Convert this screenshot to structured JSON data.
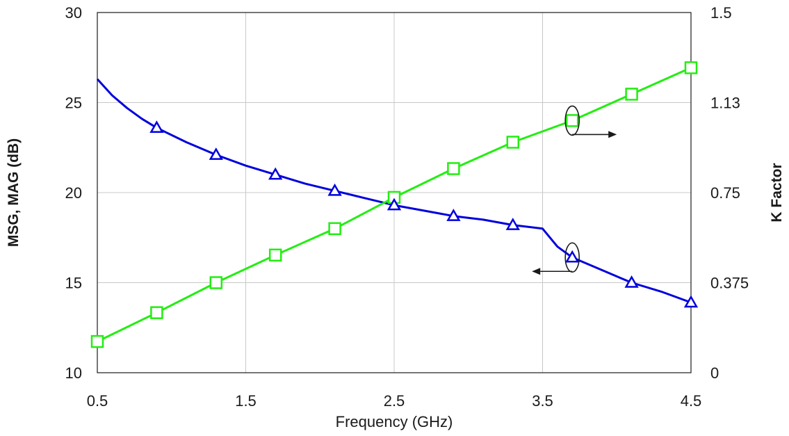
{
  "chart_data": {
    "type": "line",
    "title": "",
    "xlabel": "Frequency (GHz)",
    "ylabel_left": "MSG, MAG (dB)",
    "ylabel_right": "K Factor",
    "xlim": [
      0.5,
      4.5
    ],
    "ylim_left": [
      10,
      30
    ],
    "ylim_right": [
      0,
      1.5
    ],
    "x_ticks": [
      "0.5",
      "1.5",
      "2.5",
      "3.5",
      "4.5"
    ],
    "y_left_ticks": [
      "10",
      "15",
      "20",
      "25",
      "30"
    ],
    "y_right_ticks": [
      "0",
      "0.375",
      "0.75",
      "1.13",
      "1.5"
    ],
    "grid": true,
    "colors": {
      "msg_mag": "#0000dd",
      "k_factor": "#22ee11",
      "arrow": "#1a1a1a"
    },
    "series": [
      {
        "axis": "left",
        "marker": "triangle",
        "color": "#0000dd",
        "x": [
          0.5,
          0.6,
          0.7,
          0.8,
          0.9,
          1.1,
          1.3,
          1.5,
          1.7,
          1.9,
          2.1,
          2.3,
          2.5,
          2.7,
          2.9,
          3.1,
          3.3,
          3.5,
          3.6,
          3.7,
          3.9,
          4.1,
          4.3,
          4.5
        ],
        "y": [
          26.3,
          25.4,
          24.7,
          24.1,
          23.6,
          22.8,
          22.1,
          21.5,
          21.0,
          20.5,
          20.1,
          19.7,
          19.3,
          19.0,
          18.7,
          18.5,
          18.2,
          18.0,
          17.0,
          16.4,
          15.7,
          15.0,
          14.5,
          13.9
        ],
        "marker_x": [
          0.9,
          1.3,
          1.7,
          2.1,
          2.5,
          2.9,
          3.3,
          3.7,
          4.1,
          4.5
        ],
        "marker_y": [
          23.6,
          22.1,
          21.0,
          20.1,
          19.3,
          18.7,
          18.2,
          16.4,
          15.0,
          13.9
        ]
      },
      {
        "axis": "right",
        "marker": "square",
        "color": "#22ee11",
        "x": [
          0.5,
          0.9,
          1.3,
          1.7,
          2.1,
          2.5,
          2.9,
          3.3,
          3.7,
          4.1,
          4.5
        ],
        "y": [
          0.13,
          0.25,
          0.375,
          0.49,
          0.6,
          0.73,
          0.85,
          0.96,
          1.05,
          1.16,
          1.27
        ]
      }
    ],
    "annotations": [
      {
        "target_series": 1,
        "anchor_x": 3.7,
        "anchor_y": 1.05,
        "axis": "right",
        "arrow_direction": "right"
      },
      {
        "target_series": 0,
        "anchor_x": 3.7,
        "anchor_y": 16.4,
        "axis": "left",
        "arrow_direction": "left"
      }
    ]
  }
}
